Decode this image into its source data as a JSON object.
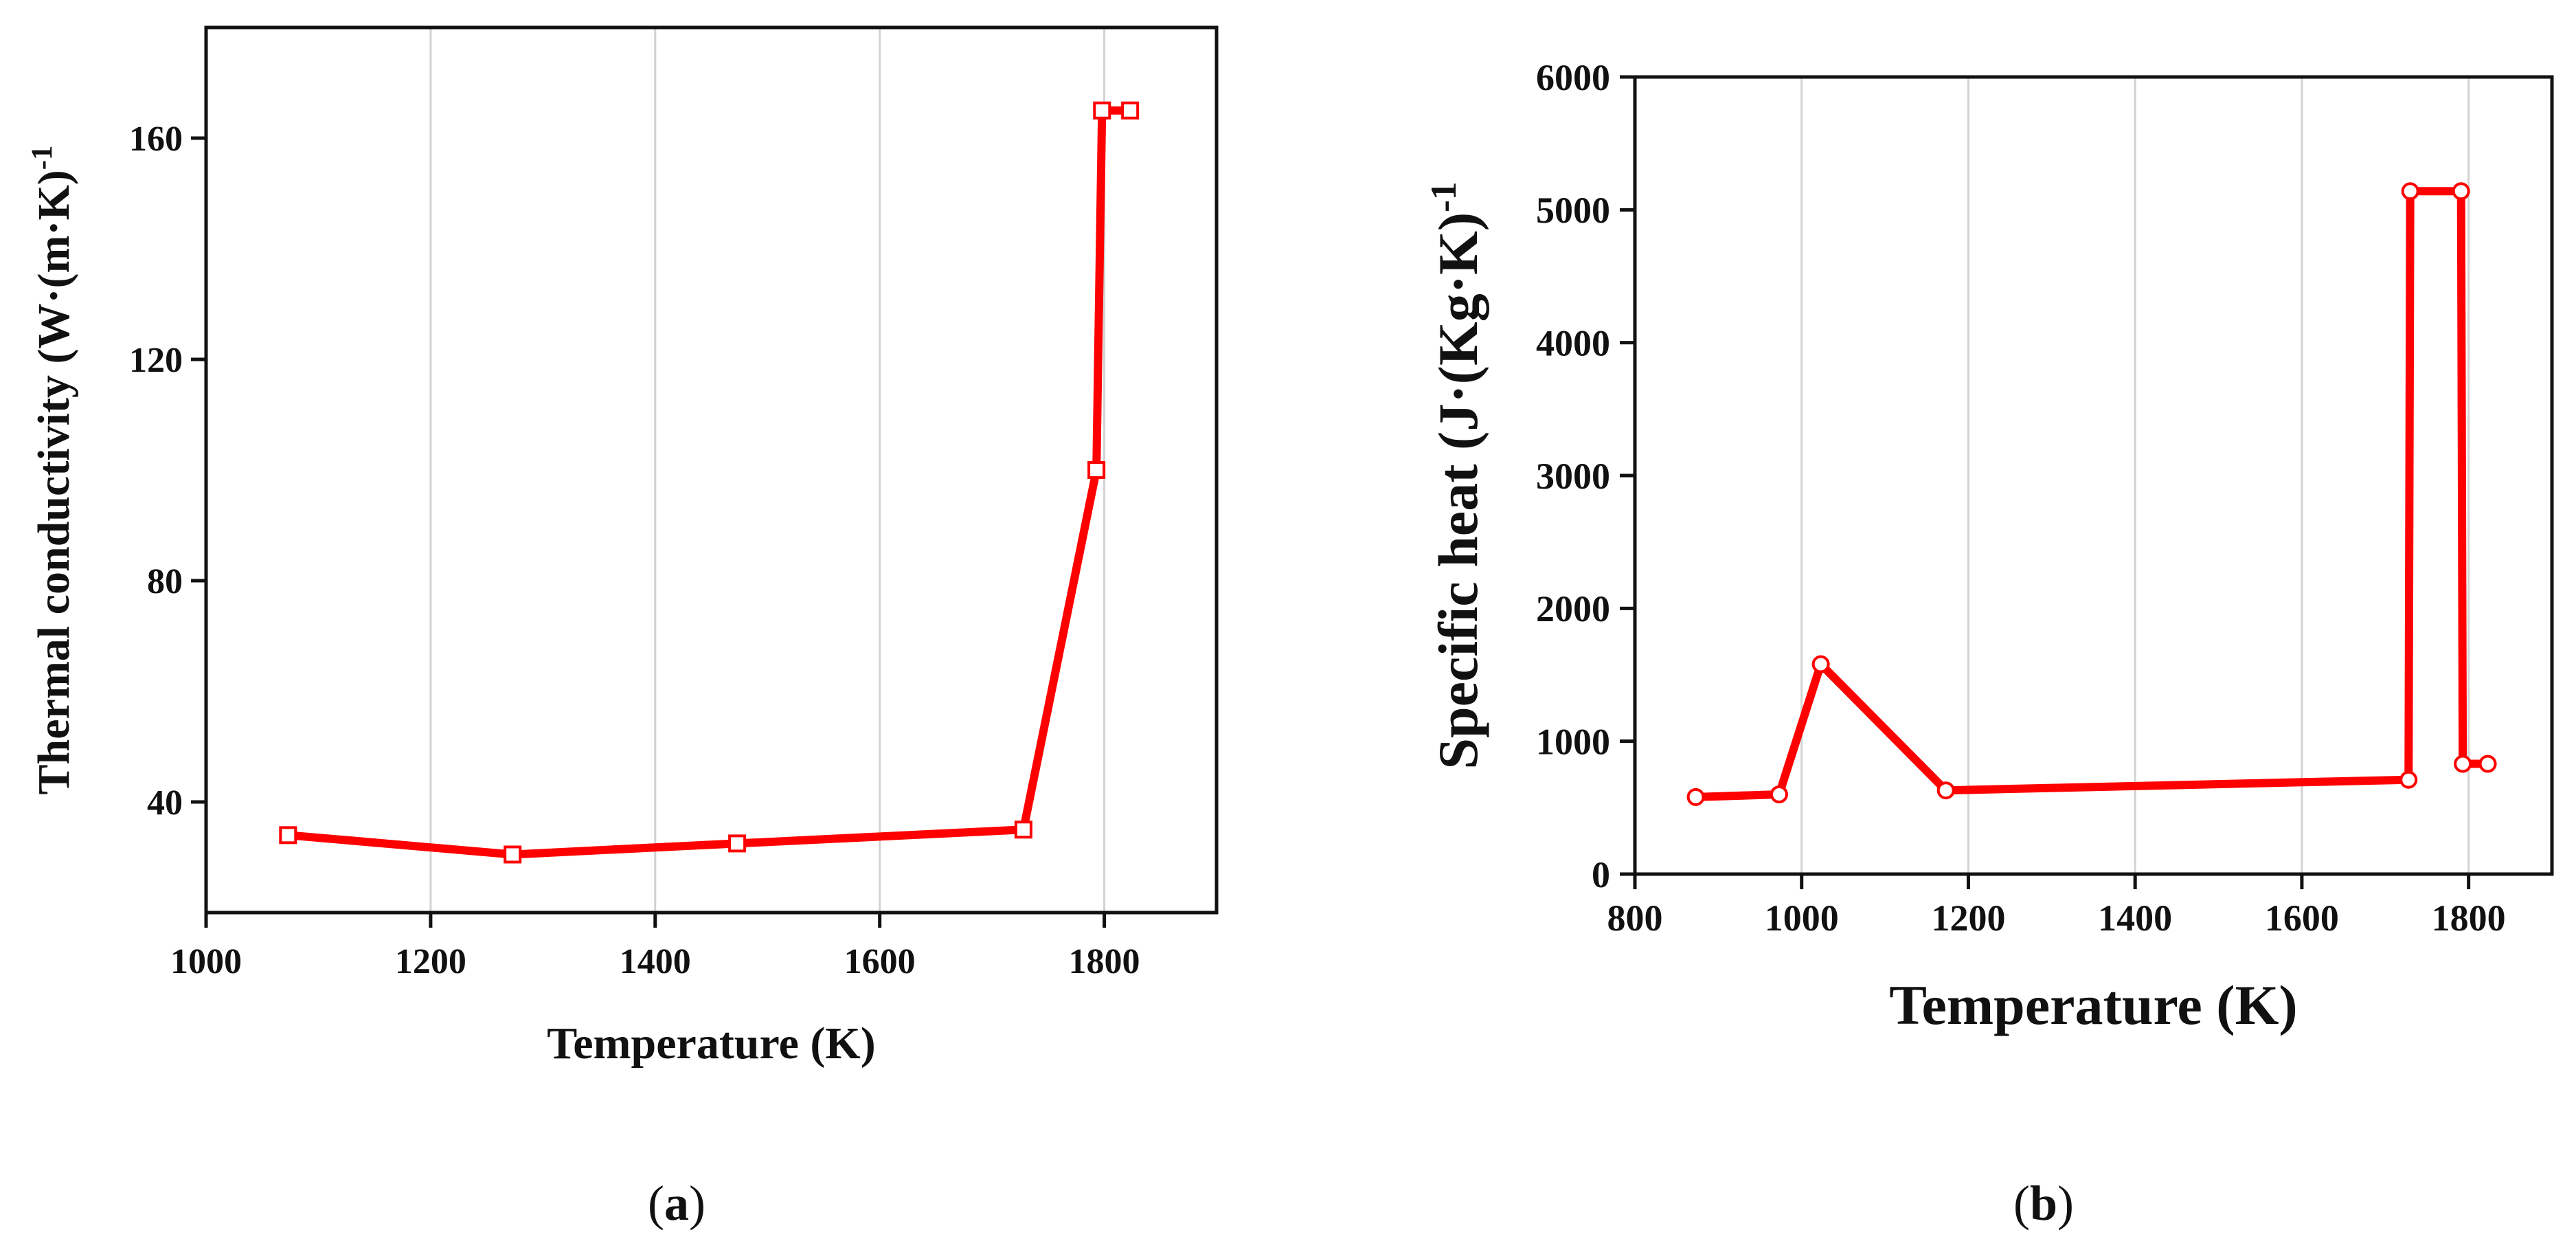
{
  "figure": {
    "panels": [
      {
        "label_open": "(",
        "label_letter": "a",
        "label_close": ")"
      },
      {
        "label_open": "(",
        "label_letter": "b",
        "label_close": ")"
      }
    ]
  },
  "chart_data": [
    {
      "type": "line",
      "title": "",
      "xlabel": "Temperature (K)",
      "ylabel": "Thermal conductivity (W·(m·K)",
      "ylabel_superscript": "-1",
      "xlim": [
        1000,
        1900
      ],
      "ylim": [
        20,
        180
      ],
      "xticks": [
        1000,
        1200,
        1400,
        1600,
        1800
      ],
      "yticks": [
        40,
        80,
        120,
        160
      ],
      "x_grid": true,
      "y_grid": false,
      "marker": "square",
      "color": "#ff0000",
      "series": [
        {
          "x": [
            1073,
            1273,
            1473,
            1728,
            1793,
            1798,
            1823
          ],
          "y": [
            34,
            30.5,
            32.5,
            35,
            100,
            165,
            165
          ]
        }
      ]
    },
    {
      "type": "line",
      "title": "",
      "xlabel": "Temperature (K)",
      "ylabel": "Specific heat (J·(Kg·K)",
      "ylabel_superscript": "-1",
      "xlim": [
        800,
        1900
      ],
      "ylim": [
        0,
        6000
      ],
      "xticks": [
        800,
        1000,
        1200,
        1400,
        1600,
        1800
      ],
      "yticks": [
        0,
        1000,
        2000,
        3000,
        4000,
        5000,
        6000
      ],
      "x_grid": true,
      "y_grid": false,
      "marker": "circle",
      "color": "#ff0000",
      "series": [
        {
          "x": [
            873,
            973,
            1023,
            1173,
            1728,
            1730,
            1791,
            1793,
            1823
          ],
          "y": [
            580,
            600,
            1580,
            630,
            710,
            5140,
            5140,
            830,
            830
          ]
        }
      ]
    }
  ]
}
